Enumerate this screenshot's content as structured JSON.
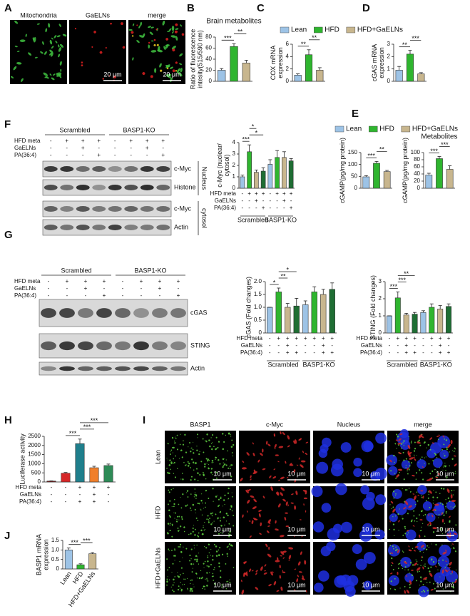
{
  "figure": {
    "panel_labels": [
      "A",
      "B",
      "C",
      "D",
      "E",
      "F",
      "G",
      "H",
      "I",
      "J"
    ],
    "a": {
      "images": [
        "Mitochondria",
        "GaELNs",
        "merge"
      ],
      "scale": "20 μm"
    },
    "legend_top": [
      {
        "name": "Lean",
        "color": "#9dc3e6"
      },
      {
        "name": "HFD",
        "color": "#2fb52f"
      },
      {
        "name": "HFD+GaELNs",
        "color": "#c8b68e"
      }
    ],
    "legend_e": [
      {
        "name": "Lean",
        "color": "#9dc3e6"
      },
      {
        "name": "HFD",
        "color": "#2fb52f"
      },
      {
        "name": "HFD+GaELNs",
        "color": "#c8b68e"
      }
    ],
    "f_blot": {
      "groups": [
        "Scrambled",
        "BASP1-KO"
      ],
      "treatments": [
        {
          "label": "HFD meta",
          "signs": [
            "-",
            "+",
            "+",
            "+",
            "-",
            "+",
            "+",
            "+"
          ]
        },
        {
          "label": "GaELNs",
          "signs": [
            "-",
            "-",
            "+",
            "-",
            "-",
            "-",
            "+",
            "-"
          ]
        },
        {
          "label": "PA(36:4)",
          "signs": [
            "-",
            "-",
            "-",
            "+",
            "-",
            "-",
            "-",
            "+"
          ]
        }
      ],
      "bands": [
        "c-Myc",
        "Histone",
        "c-Myc",
        "Actin"
      ],
      "compartments": [
        "Nucleus",
        "cytosol"
      ]
    },
    "g_blot": {
      "groups": [
        "Scrambled",
        "BASP1-KO"
      ],
      "treatments": [
        {
          "label": "HFD meta",
          "signs": [
            "-",
            "+",
            "+",
            "+",
            "-",
            "+",
            "+",
            "+"
          ]
        },
        {
          "label": "GaELNs",
          "signs": [
            "-",
            "-",
            "+",
            "-",
            "-",
            "-",
            "+",
            "-"
          ]
        },
        {
          "label": "PA(36:4)",
          "signs": [
            "-",
            "-",
            "-",
            "+",
            "-",
            "-",
            "-",
            "+"
          ]
        }
      ],
      "bands": [
        "cGAS",
        "STING",
        "Actin"
      ]
    },
    "i": {
      "columns": [
        "BASP1",
        "c-Myc",
        "Nucleus",
        "merge"
      ],
      "rows": [
        "Lean",
        "HFD",
        "HFD+GaELNs"
      ],
      "scale": "10 μm"
    }
  },
  "chart_data": [
    {
      "type": "bar",
      "title": "Brain metabolites",
      "ylabel": [
        "Ratio of fluorescence",
        "intesity(515/590 nm)"
      ],
      "values": [
        20,
        63,
        33
      ],
      "errors": [
        3,
        5,
        5
      ],
      "colors": [
        "#9dc3e6",
        "#2fb52f",
        "#c8b68e"
      ],
      "ylim": [
        0,
        80
      ],
      "yticks": [
        0,
        20,
        40,
        60,
        80
      ],
      "annotations": [
        "***",
        "**"
      ]
    },
    {
      "type": "bar",
      "ylabel": [
        "COX mRNA",
        "expression"
      ],
      "values": [
        1,
        4.3,
        1.8
      ],
      "errors": [
        0.2,
        0.8,
        0.4
      ],
      "colors": [
        "#9dc3e6",
        "#2fb52f",
        "#c8b68e"
      ],
      "ylim": [
        0,
        6
      ],
      "yticks": [
        0,
        2,
        4,
        6
      ],
      "annotations": [
        "**",
        "**"
      ]
    },
    {
      "type": "bar",
      "ylabel": [
        "cGAS mRNA",
        "expression"
      ],
      "values": [
        0.9,
        2.2,
        0.6
      ],
      "errors": [
        0.3,
        0.3,
        0.1
      ],
      "colors": [
        "#9dc3e6",
        "#2fb52f",
        "#c8b68e"
      ],
      "ylim": [
        0,
        3
      ],
      "yticks": [
        0,
        1,
        2,
        3
      ],
      "annotations": [
        "**",
        "***"
      ]
    },
    {
      "type": "bar",
      "ylabel": [
        "c-Myc (nuclear/",
        "cytosol)"
      ],
      "values": [
        1,
        3.2,
        1.4,
        1.5,
        2.1,
        2.7,
        2.7,
        2.4
      ],
      "errors": [
        0.15,
        0.6,
        0.2,
        0.3,
        0.4,
        0.6,
        0.5,
        0.2
      ],
      "colors": [
        "#9dc3e6",
        "#2fb52f",
        "#c8b68e",
        "#1f6e34",
        "#9dc3e6",
        "#2fb52f",
        "#c8b68e",
        "#1f6e34"
      ],
      "ylim": [
        0,
        4
      ],
      "yticks": [
        0,
        1,
        2,
        3,
        4
      ],
      "annotations": [
        "***",
        "*",
        "*"
      ],
      "treatments": [
        {
          "label": "HFD meta",
          "signs": [
            "-",
            "+",
            "+",
            "+",
            "-",
            "+",
            "+",
            "+"
          ]
        },
        {
          "label": "GaELNs",
          "signs": [
            "-",
            "-",
            "+",
            "-",
            "-",
            "-",
            "+",
            "-"
          ]
        },
        {
          "label": "PA(36:4)",
          "signs": [
            "-",
            "-",
            "-",
            "+",
            "-",
            "-",
            "-",
            "+"
          ]
        }
      ],
      "groups": [
        "Scrambled",
        "BASP1-KO"
      ]
    },
    {
      "type": "bar",
      "ylabel": "cGAMP(pg/mg protein)",
      "values": [
        48,
        105,
        70
      ],
      "errors": [
        5,
        8,
        5
      ],
      "colors": [
        "#9dc3e6",
        "#2fb52f",
        "#c8b68e"
      ],
      "ylim": [
        0,
        150
      ],
      "yticks": [
        0,
        50,
        100,
        150
      ],
      "annotations": [
        "***",
        "**"
      ]
    },
    {
      "type": "bar",
      "title": "Metabolites",
      "ylabel": "cGAMP(pg/mg protein)",
      "values": [
        37,
        83,
        53
      ],
      "errors": [
        5,
        6,
        10
      ],
      "colors": [
        "#9dc3e6",
        "#2fb52f",
        "#c8b68e"
      ],
      "ylim": [
        0,
        100
      ],
      "yticks": [
        0,
        20,
        40,
        60,
        80,
        100
      ],
      "annotations": [
        "***",
        "***"
      ]
    },
    {
      "type": "bar",
      "ylabel": "cGAS (Fold changes)",
      "values": [
        1,
        1.6,
        1,
        1.05,
        1.1,
        1.6,
        1.5,
        1.7
      ],
      "errors": [
        0,
        0.15,
        0.15,
        0.3,
        0.15,
        0.2,
        0.2,
        0.25
      ],
      "colors": [
        "#9dc3e6",
        "#2fb52f",
        "#c8b68e",
        "#1f6e34",
        "#9dc3e6",
        "#2fb52f",
        "#c8b68e",
        "#1f6e34"
      ],
      "ylim": [
        0,
        2
      ],
      "yticks": [
        0,
        0.5,
        {
          "value": 1,
          "label": "1.0"
        },
        1.5,
        {
          "value": 2,
          "label": "2.0"
        }
      ],
      "annotations": [
        "*",
        "**",
        "*"
      ],
      "treatments": [
        {
          "label": "HFD meta",
          "signs": [
            "-",
            "+",
            "+",
            "+",
            "+",
            "+",
            "+",
            "+"
          ]
        },
        {
          "label": "GaELNs",
          "signs": [
            "-",
            "-",
            "+",
            "-",
            "-",
            "-",
            "+",
            "-"
          ]
        },
        {
          "label": "PA(36:4)",
          "signs": [
            "-",
            "-",
            "+",
            "+",
            "-",
            "-",
            "+",
            "+"
          ]
        }
      ],
      "groups": [
        "Scrambled",
        "BASP1-KO"
      ]
    },
    {
      "type": "bar",
      "ylabel": "STING (Fold changes)",
      "values": [
        1,
        2.05,
        1.05,
        1.1,
        1.2,
        1.5,
        1.4,
        1.55
      ],
      "errors": [
        0,
        0.35,
        0.1,
        0.1,
        0.1,
        0.2,
        0.2,
        0.15
      ],
      "colors": [
        "#9dc3e6",
        "#2fb52f",
        "#c8b68e",
        "#1f6e34",
        "#9dc3e6",
        "#2fb52f",
        "#c8b68e",
        "#1f6e34"
      ],
      "ylim": [
        0,
        3
      ],
      "yticks": [
        0,
        1,
        2,
        3
      ],
      "annotations": [
        "***",
        "***",
        "**"
      ],
      "treatments": [
        {
          "label": "HFD meta",
          "signs": [
            "-",
            "+",
            "+",
            "+",
            "-",
            "+",
            "+",
            "+"
          ]
        },
        {
          "label": "GaELNs",
          "signs": [
            "-",
            "-",
            "+",
            "-",
            "-",
            "-",
            "+",
            "-"
          ]
        },
        {
          "label": "PA(36:4)",
          "signs": [
            "-",
            "-",
            "+",
            "+",
            "-",
            "-",
            "+",
            "+"
          ]
        }
      ],
      "groups": [
        "Scrambled",
        "BASP1-KO"
      ]
    },
    {
      "type": "bar",
      "ylabel": "Luciferase activity",
      "values": [
        50,
        480,
        2100,
        780,
        900
      ],
      "errors": [
        10,
        40,
        250,
        80,
        80
      ],
      "colors": [
        "#7a1f1f",
        "#d62728",
        "#1f7f8c",
        "#f07f2a",
        "#2e8b57"
      ],
      "ylim": [
        0,
        2500
      ],
      "yticks": [
        0,
        500,
        1000,
        1500,
        2000,
        2500
      ],
      "annotations": [
        "***",
        "***",
        "***"
      ],
      "treatments": [
        {
          "label": "HFD meta",
          "signs": [
            "-",
            "-",
            "+",
            "+",
            "+"
          ]
        },
        {
          "label": "GaELNs",
          "signs": [
            "-",
            "-",
            "-",
            "+",
            "-"
          ]
        },
        {
          "label": "PA(36:4)",
          "signs": [
            "-",
            "-",
            "+",
            "+",
            "-"
          ]
        }
      ]
    },
    {
      "type": "bar",
      "ylabel": [
        "BASP1 mRNA",
        "expression"
      ],
      "categories": [
        "Lean",
        "HFD",
        "HFD+GaELNs"
      ],
      "values": [
        1,
        0.22,
        0.8
      ],
      "errors": [
        0.1,
        0.05,
        0.06
      ],
      "colors": [
        "#9dc3e6",
        "#2fb52f",
        "#c8b68e"
      ],
      "ylim": [
        0,
        1.5
      ],
      "yticks": [
        0,
        0.5,
        {
          "value": 1,
          "label": "1.0"
        },
        1.5
      ],
      "annotations": [
        "***",
        "***"
      ]
    }
  ]
}
